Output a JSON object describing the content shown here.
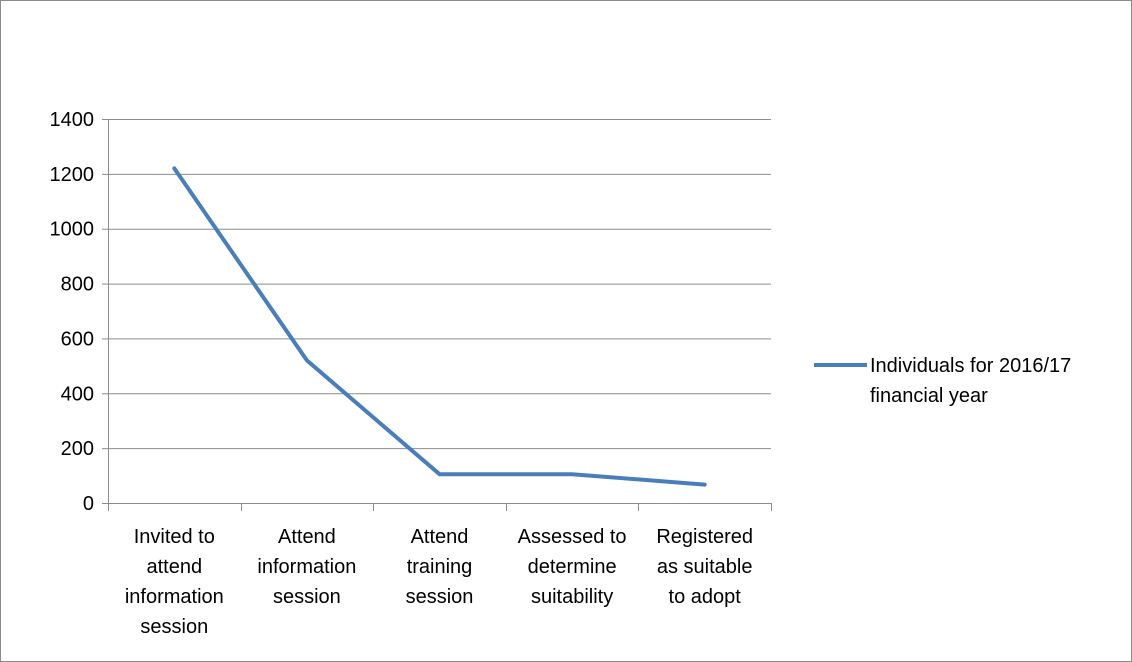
{
  "chart_data": {
    "type": "line",
    "categories": [
      "Invited to attend information session",
      "Attend information session",
      "Attend training session",
      "Assessed to determine suitability",
      "Registered as suitable to adopt"
    ],
    "category_lines": [
      [
        "Invited to",
        "attend",
        "information",
        "session"
      ],
      [
        "Attend",
        "information",
        "session"
      ],
      [
        "Attend",
        "training",
        "session"
      ],
      [
        "Assessed to",
        "determine",
        "suitability"
      ],
      [
        "Registered",
        "as suitable",
        "to adopt"
      ]
    ],
    "series": [
      {
        "name": "Individuals for 2016/17 financial year",
        "legend_lines": [
          "Individuals for 2016/17",
          "financial year"
        ],
        "values": [
          1220,
          520,
          105,
          105,
          67
        ],
        "color": "#4a7ebb"
      }
    ],
    "yticks": [
      "0",
      "200",
      "400",
      "600",
      "800",
      "1000",
      "1200",
      "1400"
    ],
    "ylim": [
      0,
      1400
    ],
    "grid": true,
    "legend_position": "right",
    "gridline_color": "#8c8c8c"
  }
}
